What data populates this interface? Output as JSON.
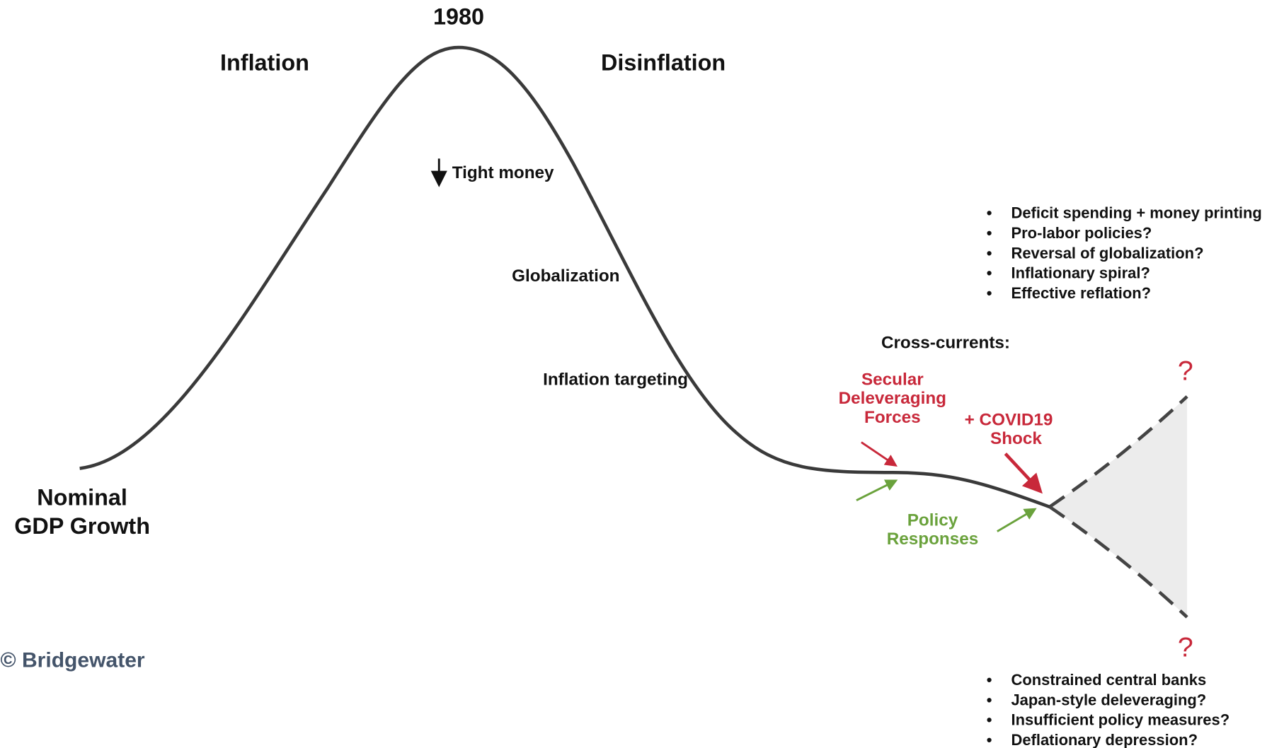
{
  "year": "1980",
  "left_phase": "Inflation",
  "right_phase": "Disinflation",
  "y_label": [
    "Nominal",
    "GDP Growth"
  ],
  "drivers": [
    "Tight money",
    "Globalization",
    "Inflation targeting"
  ],
  "cross_currents": "Cross-currents:",
  "secular": [
    "Secular",
    "Deleveraging",
    "Forces"
  ],
  "covid": [
    "+ COVID19",
    "Shock"
  ],
  "policy": [
    "Policy",
    "Responses"
  ],
  "upper_question": "?",
  "lower_question": "?",
  "upside": [
    "Deficit spending + money printing",
    "Pro-labor policies?",
    "Reversal of globalization?",
    "Inflationary spiral?",
    "Effective reflation?"
  ],
  "downside": [
    "Constrained central banks",
    "Japan-style deleveraging?",
    "Insufficient policy measures?",
    "Deflationary depression?"
  ],
  "copyright": "© Bridgewater"
}
